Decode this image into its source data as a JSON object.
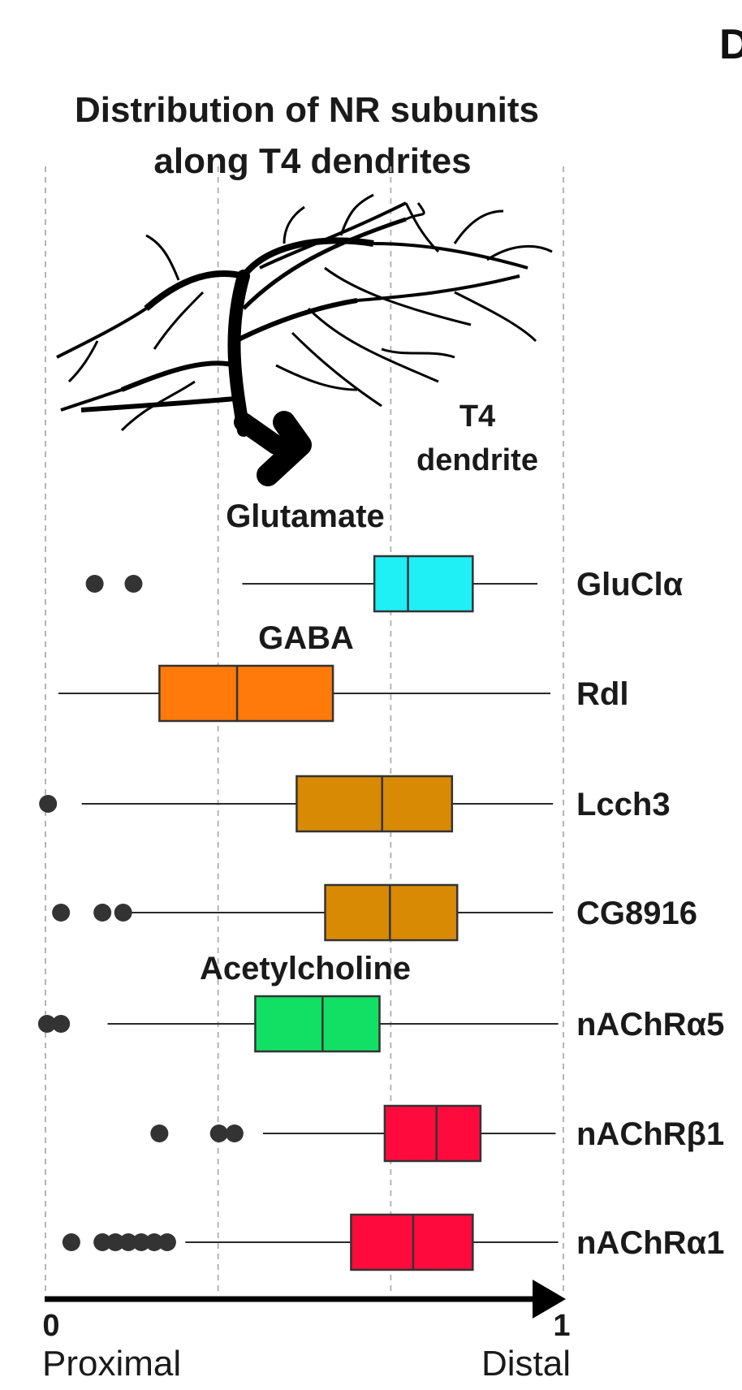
{
  "panel_label": "D",
  "chart_data": {
    "type": "boxplot",
    "title": [
      "Distribution of NR subunits",
      "along T4 dendrites"
    ],
    "illustration_label": [
      "T4",
      "dendrite"
    ],
    "xlim": [
      0,
      1
    ],
    "grid": "vertical dashed lines at 0, 0.333, 0.667, 1",
    "ticks": [
      "0",
      "1"
    ],
    "xlabel_left": "Proximal",
    "xlabel_right": "Distal",
    "groups": [
      {
        "name": "Glutamate",
        "members": [
          "GluClα"
        ]
      },
      {
        "name": "GABA",
        "members": [
          "Rdl",
          "Lcch3",
          "CG8916"
        ]
      },
      {
        "name": "Acetylcholine",
        "members": [
          "nAChRα5",
          "nAChRβ1",
          "nAChRα1"
        ]
      }
    ],
    "boxes": [
      {
        "label": "GluClα",
        "color": "#1ef0f5",
        "whisker_low": 0.38,
        "q1": 0.635,
        "median": 0.7,
        "q3": 0.825,
        "whisker_high": 0.95,
        "outliers": [
          0.095,
          0.17
        ]
      },
      {
        "label": "Rdl",
        "color": "#ff7a0a",
        "whisker_low": 0.025,
        "q1": 0.22,
        "median": 0.37,
        "q3": 0.555,
        "whisker_high": 0.975,
        "outliers": []
      },
      {
        "label": "Lcch3",
        "color": "#d98a05",
        "whisker_low": 0.07,
        "q1": 0.485,
        "median": 0.65,
        "q3": 0.785,
        "whisker_high": 0.98,
        "outliers": [
          0.005
        ]
      },
      {
        "label": "CG8916",
        "color": "#d98a05",
        "whisker_low": 0.16,
        "q1": 0.54,
        "median": 0.665,
        "q3": 0.795,
        "whisker_high": 0.98,
        "outliers": [
          0.03,
          0.11,
          0.15
        ]
      },
      {
        "label": "nAChRα5",
        "color": "#12e065",
        "whisker_low": 0.12,
        "q1": 0.405,
        "median": 0.535,
        "q3": 0.645,
        "whisker_high": 0.99,
        "outliers": [
          0.003,
          0.03
        ]
      },
      {
        "label": "nAChRβ1",
        "color": "#ff0a3c",
        "whisker_low": 0.42,
        "q1": 0.655,
        "median": 0.755,
        "q3": 0.84,
        "whisker_high": 0.985,
        "outliers": [
          0.22,
          0.335,
          0.365
        ]
      },
      {
        "label": "nAChRα1",
        "color": "#ff0a3c",
        "whisker_low": 0.27,
        "q1": 0.59,
        "median": 0.71,
        "q3": 0.825,
        "whisker_high": 0.99,
        "outliers": [
          0.05,
          0.11,
          0.135,
          0.16,
          0.185,
          0.21,
          0.235
        ]
      }
    ]
  }
}
